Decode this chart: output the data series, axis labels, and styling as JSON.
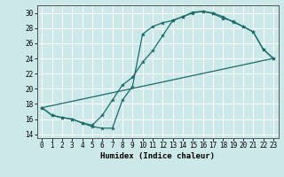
{
  "xlabel": "Humidex (Indice chaleur)",
  "bg_color": "#cce8e8",
  "grid_color": "#ffffff",
  "line_color": "#1a6b6b",
  "xlim": [
    -0.5,
    23.5
  ],
  "ylim": [
    13.5,
    31.0
  ],
  "xticks": [
    0,
    1,
    2,
    3,
    4,
    5,
    6,
    7,
    8,
    9,
    10,
    11,
    12,
    13,
    14,
    15,
    16,
    17,
    18,
    19,
    20,
    21,
    22,
    23
  ],
  "yticks": [
    14,
    16,
    18,
    20,
    22,
    24,
    26,
    28,
    30
  ],
  "curve1_x": [
    0,
    1,
    2,
    3,
    4,
    5,
    6,
    7,
    8,
    9,
    10,
    11,
    12,
    13,
    14,
    15,
    16,
    17,
    18,
    19,
    20,
    21,
    22,
    23
  ],
  "curve1_y": [
    17.5,
    16.5,
    16.2,
    16.0,
    15.5,
    15.0,
    14.8,
    14.8,
    18.5,
    20.3,
    27.2,
    28.2,
    28.7,
    29.0,
    29.5,
    30.0,
    30.2,
    29.9,
    29.3,
    28.9,
    28.2,
    27.5,
    25.2,
    24.0
  ],
  "curve2_x": [
    0,
    1,
    2,
    3,
    4,
    5,
    6,
    7,
    8,
    9,
    10,
    11,
    12,
    13,
    14,
    15,
    16,
    17,
    18,
    19,
    20,
    21,
    22,
    23
  ],
  "curve2_y": [
    17.5,
    16.5,
    16.2,
    16.0,
    15.5,
    15.2,
    16.5,
    18.5,
    20.5,
    21.5,
    23.5,
    25.0,
    27.0,
    29.0,
    29.5,
    30.1,
    30.2,
    30.0,
    29.5,
    28.8,
    28.2,
    27.5,
    25.2,
    24.0
  ],
  "line3_x": [
    0,
    23
  ],
  "line3_y": [
    17.5,
    24.0
  ]
}
